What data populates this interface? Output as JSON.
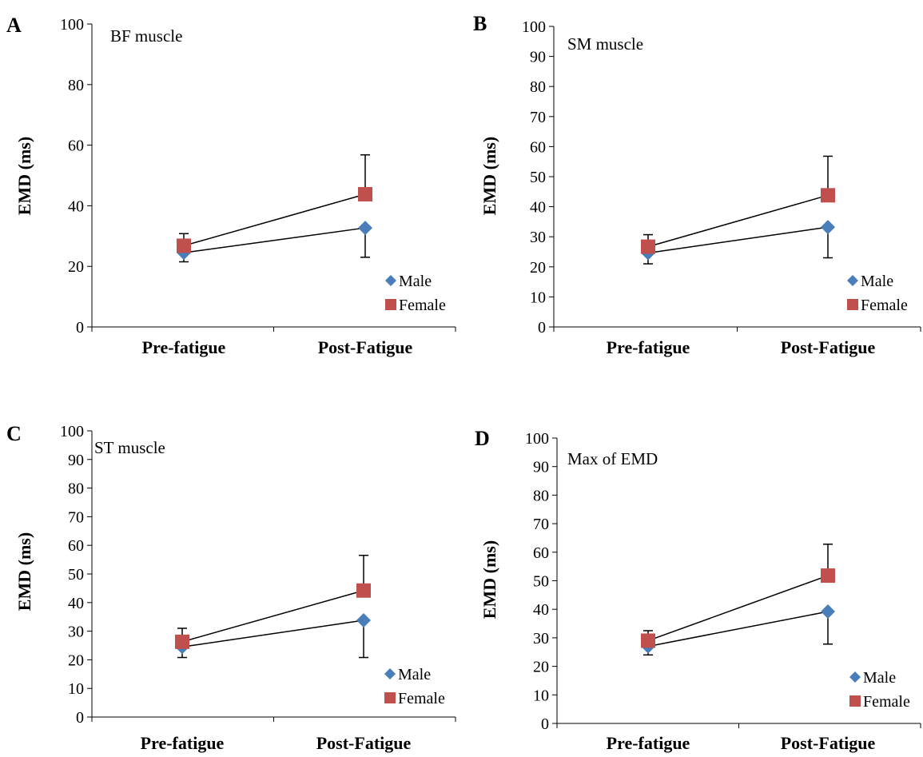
{
  "chart_data": [
    {
      "panel": "A",
      "type": "line",
      "annotation": "BF muscle",
      "categories": [
        "Pre-fatigue",
        "Post-Fatigue"
      ],
      "ylabel": "EMD (ms)",
      "ylim": [
        0,
        100
      ],
      "yticks": [
        0,
        20,
        40,
        60,
        80,
        100
      ],
      "legend_position": "bottom-right",
      "series": [
        {
          "name": "Male",
          "values": [
            24.5,
            32.7
          ],
          "error_low": [
            21.5,
            23.0
          ],
          "color": "#4a7ebb",
          "marker": "diamond"
        },
        {
          "name": "Female",
          "values": [
            26.8,
            43.8
          ],
          "error_high": [
            30.8,
            56.8
          ],
          "color": "#c0504d",
          "marker": "square"
        }
      ]
    },
    {
      "panel": "B",
      "type": "line",
      "annotation": "SM muscle",
      "categories": [
        "Pre-fatigue",
        "Post-Fatigue"
      ],
      "ylabel": "EMD (ms)",
      "ylim": [
        0,
        100
      ],
      "yticks": [
        0,
        10,
        20,
        30,
        40,
        50,
        60,
        70,
        80,
        90,
        100
      ],
      "legend_position": "bottom-right",
      "series": [
        {
          "name": "Male",
          "values": [
            24.6,
            33.2
          ],
          "error_low": [
            21.0,
            23.0
          ],
          "color": "#4a7ebb",
          "marker": "diamond"
        },
        {
          "name": "Female",
          "values": [
            26.7,
            43.8
          ],
          "error_high": [
            30.7,
            56.8
          ],
          "color": "#c0504d",
          "marker": "square"
        }
      ]
    },
    {
      "panel": "C",
      "type": "line",
      "annotation": "ST muscle",
      "categories": [
        "Pre-fatigue",
        "Post-Fatigue"
      ],
      "ylabel": "EMD (ms)",
      "ylim": [
        0,
        100
      ],
      "yticks": [
        0,
        10,
        20,
        30,
        40,
        50,
        60,
        70,
        80,
        90,
        100
      ],
      "legend_position": "bottom-right",
      "series": [
        {
          "name": "Male",
          "values": [
            24.5,
            33.8
          ],
          "error_low": [
            20.8,
            20.8
          ],
          "color": "#4a7ebb",
          "marker": "diamond"
        },
        {
          "name": "Female",
          "values": [
            26.3,
            44.2
          ],
          "error_high": [
            31.0,
            56.5
          ],
          "color": "#c0504d",
          "marker": "square"
        }
      ]
    },
    {
      "panel": "D",
      "type": "line",
      "annotation": "Max of EMD",
      "categories": [
        "Pre-fatigue",
        "Post-Fatigue"
      ],
      "ylabel": "EMD (ms)",
      "ylim": [
        0,
        100
      ],
      "yticks": [
        0,
        10,
        20,
        30,
        40,
        50,
        60,
        70,
        80,
        90,
        100
      ],
      "legend_position": "bottom-right",
      "series": [
        {
          "name": "Male",
          "values": [
            27.0,
            39.2
          ],
          "error_low": [
            24.0,
            27.8
          ],
          "color": "#4a7ebb",
          "marker": "diamond"
        },
        {
          "name": "Female",
          "values": [
            29.0,
            51.8
          ],
          "error_high": [
            32.5,
            62.8
          ],
          "color": "#c0504d",
          "marker": "square"
        }
      ]
    }
  ]
}
